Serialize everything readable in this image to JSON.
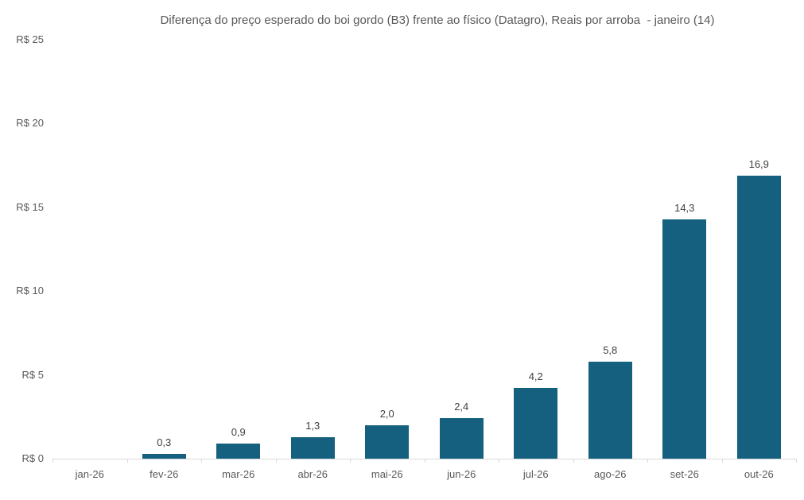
{
  "chart_data": {
    "type": "bar",
    "title": "Diferença do preço esperado do boi gordo (B3) frente ao físico (Datagro), Reais por arroba  - janeiro (14)",
    "categories": [
      "jan-26",
      "fev-26",
      "mar-26",
      "abr-26",
      "mai-26",
      "jun-26",
      "jul-26",
      "ago-26",
      "set-26",
      "out-26"
    ],
    "values": [
      0.0,
      0.3,
      0.9,
      1.3,
      2.0,
      2.4,
      4.2,
      5.8,
      14.3,
      16.9
    ],
    "data_labels": [
      "",
      "0,3",
      "0,9",
      "1,3",
      "2,0",
      "2,4",
      "4,2",
      "5,8",
      "14,3",
      "16,9"
    ],
    "y_tick_values": [
      0,
      5,
      10,
      15,
      20,
      25
    ],
    "y_tick_labels": [
      "R$ 0",
      "R$ 5",
      "R$ 10",
      "R$ 15",
      "R$ 20",
      "R$ 25"
    ],
    "ylim": [
      0,
      25
    ],
    "xlabel": "",
    "ylabel": "",
    "grid": false,
    "legend": false,
    "colors": {
      "bar": "#15607E",
      "title_text": "#595959",
      "axis_text": "#595959",
      "data_label_text": "#404040",
      "axis_line": "#d9d9d9",
      "background": "#ffffff"
    }
  }
}
